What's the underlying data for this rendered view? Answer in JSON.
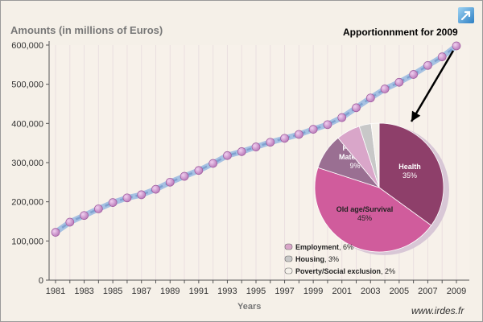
{
  "header": {
    "y_axis_title": "Amounts (in millions of Euros)",
    "pie_title": "Apportionnment for 2009",
    "x_axis_title": "Years",
    "website": "www.irdes.fr",
    "corner_icon": "external-link-arrow-icon"
  },
  "colors": {
    "background": "#f5f0e8",
    "line": "#8fb0d8",
    "marker": "#b877b8",
    "arrow": "#000000"
  },
  "chart_data": [
    {
      "type": "line",
      "title": "",
      "xlabel": "Years",
      "ylabel": "Amounts (in millions of Euros)",
      "x": [
        1981,
        1982,
        1983,
        1984,
        1985,
        1986,
        1987,
        1988,
        1989,
        1990,
        1991,
        1992,
        1993,
        1994,
        1995,
        1996,
        1997,
        1998,
        1999,
        2000,
        2001,
        2002,
        2003,
        2004,
        2005,
        2006,
        2007,
        2008,
        2009
      ],
      "series": [
        {
          "values": [
            122000,
            148000,
            165000,
            182000,
            198000,
            210000,
            218000,
            232000,
            250000,
            265000,
            280000,
            298000,
            318000,
            328000,
            340000,
            352000,
            362000,
            372000,
            385000,
            397000,
            415000,
            440000,
            465000,
            488000,
            505000,
            525000,
            548000,
            570000,
            598000
          ]
        }
      ],
      "xlim": [
        1981,
        2009
      ],
      "ylim": [
        0,
        600000
      ],
      "x_ticks": [
        "1981",
        "1983",
        "1985",
        "1987",
        "1989",
        "1991",
        "1993",
        "1995",
        "1997",
        "1999",
        "2001",
        "2003",
        "2005",
        "2007",
        "2009"
      ],
      "y_ticks": [
        "0",
        "100,000",
        "200,000",
        "300,000",
        "400,000",
        "500,000",
        "600,000"
      ],
      "grid": "vertical"
    },
    {
      "type": "pie",
      "title": "Apportionnment for 2009",
      "slices": [
        {
          "label": "Health",
          "value": 35,
          "pct_label": "35%",
          "color": "#8e3f6a"
        },
        {
          "label": "Old age/Survival",
          "value": 45,
          "pct_label": "45%",
          "color": "#d05c9c"
        },
        {
          "label": "Family/\nMaternity",
          "value": 9,
          "pct_label": "9%",
          "color": "#9a6f92"
        },
        {
          "label": "Employment",
          "value": 6,
          "pct_label": "6%",
          "color": "#d9a6c9"
        },
        {
          "label": "Housing",
          "value": 3,
          "pct_label": "3%",
          "color": "#c8c8c8"
        },
        {
          "label": "Poverty/Social exclusion",
          "value": 2,
          "pct_label": "2%",
          "color": "#f4f0ea"
        }
      ],
      "legend": [
        {
          "label": "Employment",
          "pct": ", 6%",
          "color": "#d9a6c9"
        },
        {
          "label": "Housing",
          "pct": ", 3%",
          "color": "#c8c8c8"
        },
        {
          "label": "Poverty/Social exclusion",
          "pct": ", 2%",
          "color": "#f4f0ea"
        }
      ],
      "legend_position": "bottom-right"
    }
  ]
}
